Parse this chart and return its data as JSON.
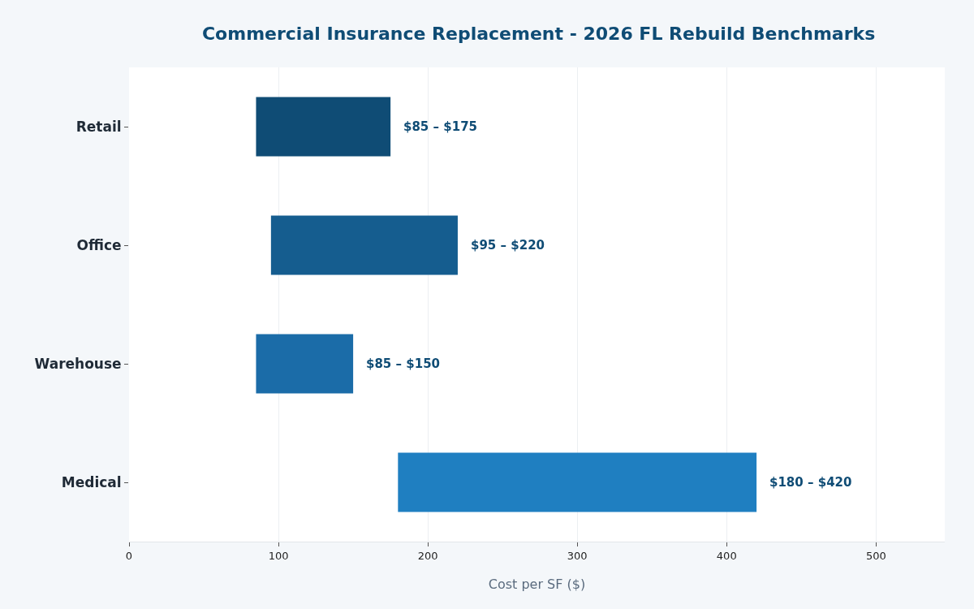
{
  "chart_data": {
    "type": "bar",
    "orientation": "horizontal",
    "title": "Commercial Insurance Replacement - 2026 FL Rebuild Benchmarks",
    "xlabel": "Cost per SF ($)",
    "categories": [
      "Retail",
      "Office",
      "Warehouse",
      "Medical"
    ],
    "base": [
      85,
      95,
      85,
      180
    ],
    "values": [
      90,
      125,
      65,
      240
    ],
    "colors": [
      "#0f4c75",
      "#155d8f",
      "#1b6ca8",
      "#1f7fc1"
    ],
    "annotations": [
      {
        "text": "$85 – $175",
        "x": 175,
        "y": "Retail"
      },
      {
        "text": "$95 – $220",
        "x": 220,
        "y": "Office"
      },
      {
        "text": "$85 – $150",
        "x": 150,
        "y": "Warehouse"
      },
      {
        "text": "$180 – $420",
        "x": 420,
        "y": "Medical"
      }
    ],
    "xlim": [
      0,
      546
    ],
    "xticks": [
      0,
      100,
      200,
      300,
      400,
      500
    ],
    "grid": "x"
  }
}
